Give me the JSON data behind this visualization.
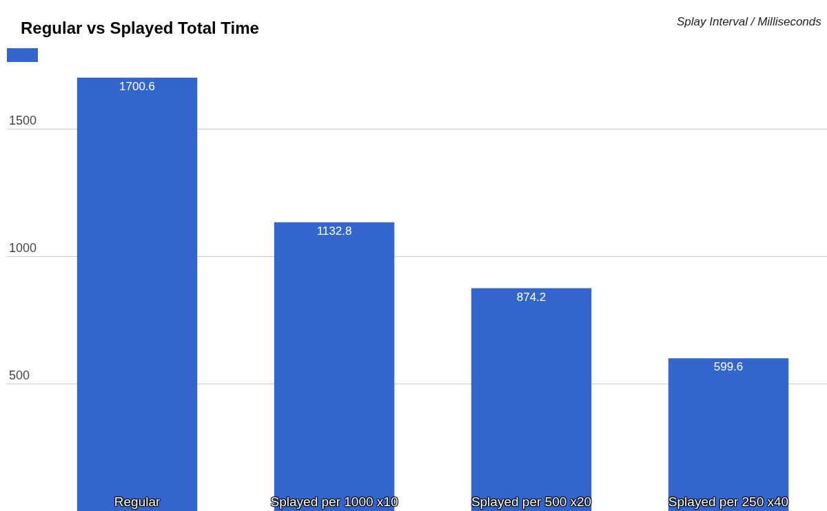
{
  "chart_data": {
    "type": "bar",
    "title": "Regular vs Splayed Total Time",
    "annotations": [
      "Splay Interval / Milliseconds"
    ],
    "categories": [
      "Regular",
      "Splayed per 1000 x10",
      "Splayed per 500 x20",
      "Splayed per 250 x40"
    ],
    "values": [
      1700.6,
      1132.8,
      874.2,
      599.6
    ],
    "color": "#3366cc",
    "ylim": [
      0,
      2000
    ],
    "yticks": [
      500,
      1000,
      1500
    ],
    "grid": "y",
    "data_labels": true
  }
}
